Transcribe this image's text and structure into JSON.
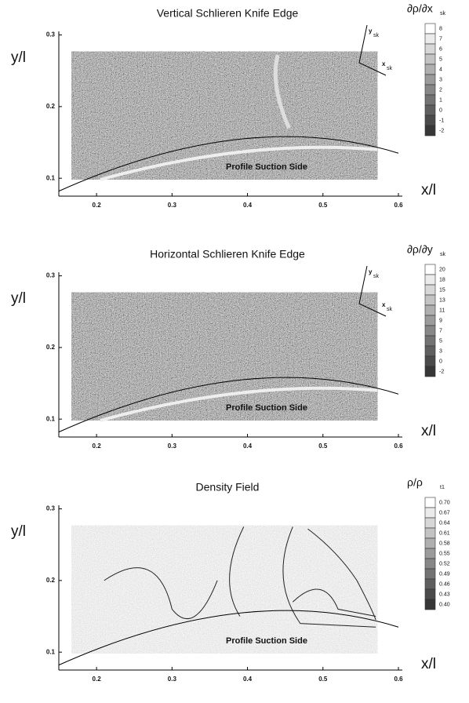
{
  "chart_data": [
    {
      "type": "contour",
      "title": "Vertical Schlieren Knife Edge",
      "colorbar_label": "∂ρ/∂x",
      "colorbar_label_sub": "sk",
      "levels": [
        8,
        7,
        6,
        5,
        4,
        3,
        2,
        1,
        0,
        -1,
        -2
      ],
      "xlabel": "x/l",
      "ylabel": "y/l",
      "annotation": "Profile Suction Side",
      "frame_labels": [
        {
          "text": "y",
          "sub": "sk"
        },
        {
          "text": "x",
          "sub": "sk"
        }
      ],
      "xlim": [
        0.15,
        0.6
      ],
      "ylim": [
        0.075,
        0.305
      ],
      "xticks": [
        0.2,
        0.3,
        0.4,
        0.5,
        0.6
      ],
      "yticks": [
        0.1,
        0.2,
        0.3
      ]
    },
    {
      "type": "contour",
      "title": "Horizontal Schlieren Knife Edge",
      "colorbar_label": "∂ρ/∂y",
      "colorbar_label_sub": "sk",
      "levels": [
        20,
        18,
        15,
        13,
        11,
        9,
        7,
        5,
        3,
        0,
        -2
      ],
      "xlabel": "x/l",
      "ylabel": "y/l",
      "annotation": "Profile Suction Side",
      "frame_labels": [
        {
          "text": "y",
          "sub": "sk"
        },
        {
          "text": "x",
          "sub": "sk"
        }
      ],
      "xlim": [
        0.15,
        0.6
      ],
      "ylim": [
        0.075,
        0.305
      ],
      "xticks": [
        0.2,
        0.3,
        0.4,
        0.5,
        0.6
      ],
      "yticks": [
        0.1,
        0.2,
        0.3
      ]
    },
    {
      "type": "contour",
      "title": "Density Field",
      "colorbar_label": "ρ/ρ",
      "colorbar_label_sub": "t1",
      "levels": [
        {
          "value": 0.7,
          "label": "0.70"
        },
        0.67,
        0.64,
        0.61,
        0.58,
        0.55,
        0.52,
        0.49,
        0.46,
        0.43,
        {
          "value": 0.4,
          "label": "0.40"
        }
      ],
      "xlabel": "x/l",
      "ylabel": "y/l",
      "annotation": "Profile Suction Side",
      "xlim": [
        0.15,
        0.6
      ],
      "ylim": [
        0.075,
        0.305
      ],
      "xticks": [
        0.2,
        0.3,
        0.4,
        0.5,
        0.6
      ],
      "yticks": [
        0.1,
        0.2,
        0.3
      ]
    }
  ]
}
